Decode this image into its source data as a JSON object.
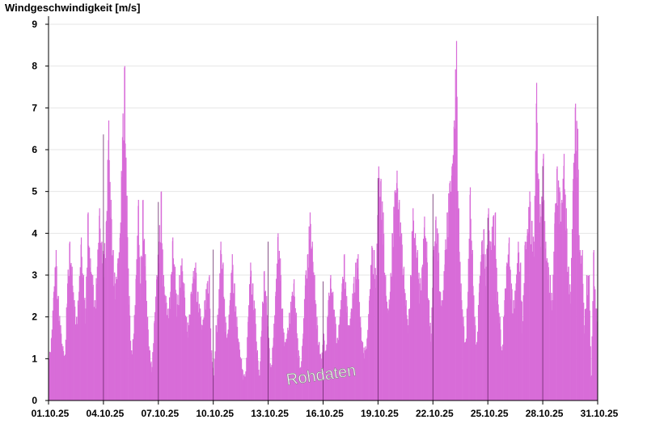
{
  "chart_data": {
    "type": "bar",
    "ylabel": "Windgeschwindigkeit [m/s]",
    "ylim": [
      0,
      9
    ],
    "yticks": [
      0,
      1,
      2,
      3,
      4,
      5,
      6,
      7,
      8,
      9
    ],
    "xlim": [
      "01.10.25",
      "31.10.25"
    ],
    "xticks": [
      "01.10.25",
      "04.10.25",
      "07.10.25",
      "10.10.25",
      "13.10.25",
      "16.10.25",
      "19.10.25",
      "22.10.25",
      "25.10.25",
      "28.10.25",
      "31.10.25"
    ],
    "grid": true,
    "watermark": "Rohdaten",
    "bar_color": "#d86cd8",
    "days": [
      "01.10.25",
      "02.10.25",
      "03.10.25",
      "04.10.25",
      "05.10.25",
      "06.10.25",
      "07.10.25",
      "08.10.25",
      "09.10.25",
      "10.10.25",
      "11.10.25",
      "12.10.25",
      "13.10.25",
      "14.10.25",
      "15.10.25",
      "16.10.25",
      "17.10.25",
      "18.10.25",
      "19.10.25",
      "20.10.25",
      "21.10.25",
      "22.10.25",
      "23.10.25",
      "24.10.25",
      "25.10.25",
      "26.10.25",
      "27.10.25",
      "28.10.25",
      "29.10.25",
      "30.10.25"
    ],
    "series": [
      {
        "values_per_3h": [
          [
            1.0,
            1.5,
            2.6,
            3.6,
            2.5,
            1.8,
            1.3,
            1.1
          ],
          [
            2.8,
            3.8,
            3.2,
            2.4,
            2.0,
            2.6,
            3.9,
            3.0
          ],
          [
            2.2,
            4.5,
            3.4,
            3.0,
            2.4,
            3.2,
            4.6,
            3.8
          ],
          [
            3.5,
            4.3,
            6.7,
            4.8,
            3.6,
            2.8,
            3.4,
            4.0
          ],
          [
            6.3,
            8.0,
            4.9,
            2.5,
            1.2,
            1.6,
            3.0,
            4.8
          ],
          [
            2.8,
            4.8,
            3.5,
            2.0,
            1.2,
            0.8,
            1.9,
            3.0
          ],
          [
            3.8,
            5.0,
            3.0,
            2.5,
            2.2,
            2.6,
            3.9,
            3.2
          ],
          [
            2.3,
            3.0,
            3.4,
            2.8,
            2.0,
            1.8,
            2.6,
            3.1
          ],
          [
            3.3,
            2.6,
            2.2,
            1.8,
            2.4,
            2.8,
            3.0,
            1.2
          ],
          [
            0.6,
            1.8,
            2.2,
            3.8,
            3.3,
            2.0,
            1.6,
            2.4
          ],
          [
            3.5,
            2.8,
            2.0,
            1.4,
            1.0,
            0.6,
            0.7,
            2.0
          ],
          [
            3.3,
            2.8,
            2.2,
            1.2,
            0.6,
            2.0,
            3.1,
            2.5
          ],
          [
            1.5,
            0.8,
            1.5,
            2.6,
            4.0,
            3.4,
            2.2,
            1.4
          ],
          [
            1.6,
            2.1,
            2.5,
            2.9,
            2.1,
            1.2,
            0.8,
            1.6
          ],
          [
            3.0,
            3.5,
            4.5,
            3.8,
            3.0,
            2.0,
            1.4,
            1.0
          ],
          [
            1.6,
            1.2,
            2.4,
            3.0,
            2.6,
            2.0,
            1.5,
            2.0
          ],
          [
            2.8,
            3.5,
            2.5,
            1.8,
            2.2,
            2.8,
            3.3,
            3.5
          ],
          [
            2.0,
            1.4,
            1.2,
            1.5,
            2.5,
            3.7,
            3.6,
            3.0
          ],
          [
            5.6,
            5.3,
            4.5,
            3.0,
            2.2,
            2.6,
            4.0,
            5.0
          ],
          [
            5.5,
            4.8,
            4.0,
            3.2,
            2.4,
            1.8,
            3.0,
            4.6
          ],
          [
            4.0,
            3.6,
            2.8,
            3.2,
            4.4,
            3.8,
            2.4,
            1.6
          ],
          [
            3.6,
            4.4,
            4.0,
            2.6,
            2.4,
            3.6,
            4.5,
            5.2
          ],
          [
            5.6,
            6.7,
            8.6,
            4.6,
            2.8,
            2.0,
            1.4,
            2.6
          ],
          [
            5.1,
            3.6,
            2.0,
            1.4,
            2.8,
            3.8,
            4.1,
            3.2
          ],
          [
            4.6,
            3.8,
            4.4,
            4.5,
            2.6,
            2.0,
            1.2,
            2.4
          ],
          [
            3.3,
            3.9,
            2.8,
            2.4,
            2.8,
            3.8,
            3.3,
            1.9
          ],
          [
            3.8,
            4.1,
            5.0,
            4.3,
            3.8,
            7.6,
            5.3,
            4.4
          ],
          [
            5.9,
            3.8,
            3.3,
            3.0,
            2.4,
            4.5,
            5.6,
            5.1
          ],
          [
            4.8,
            5.9,
            4.6,
            3.2,
            2.6,
            5.3,
            7.1,
            6.5
          ],
          [
            3.6,
            3.6,
            1.8,
            3.0,
            3.0,
            0.6,
            3.6,
            2.2
          ]
        ]
      }
    ]
  }
}
